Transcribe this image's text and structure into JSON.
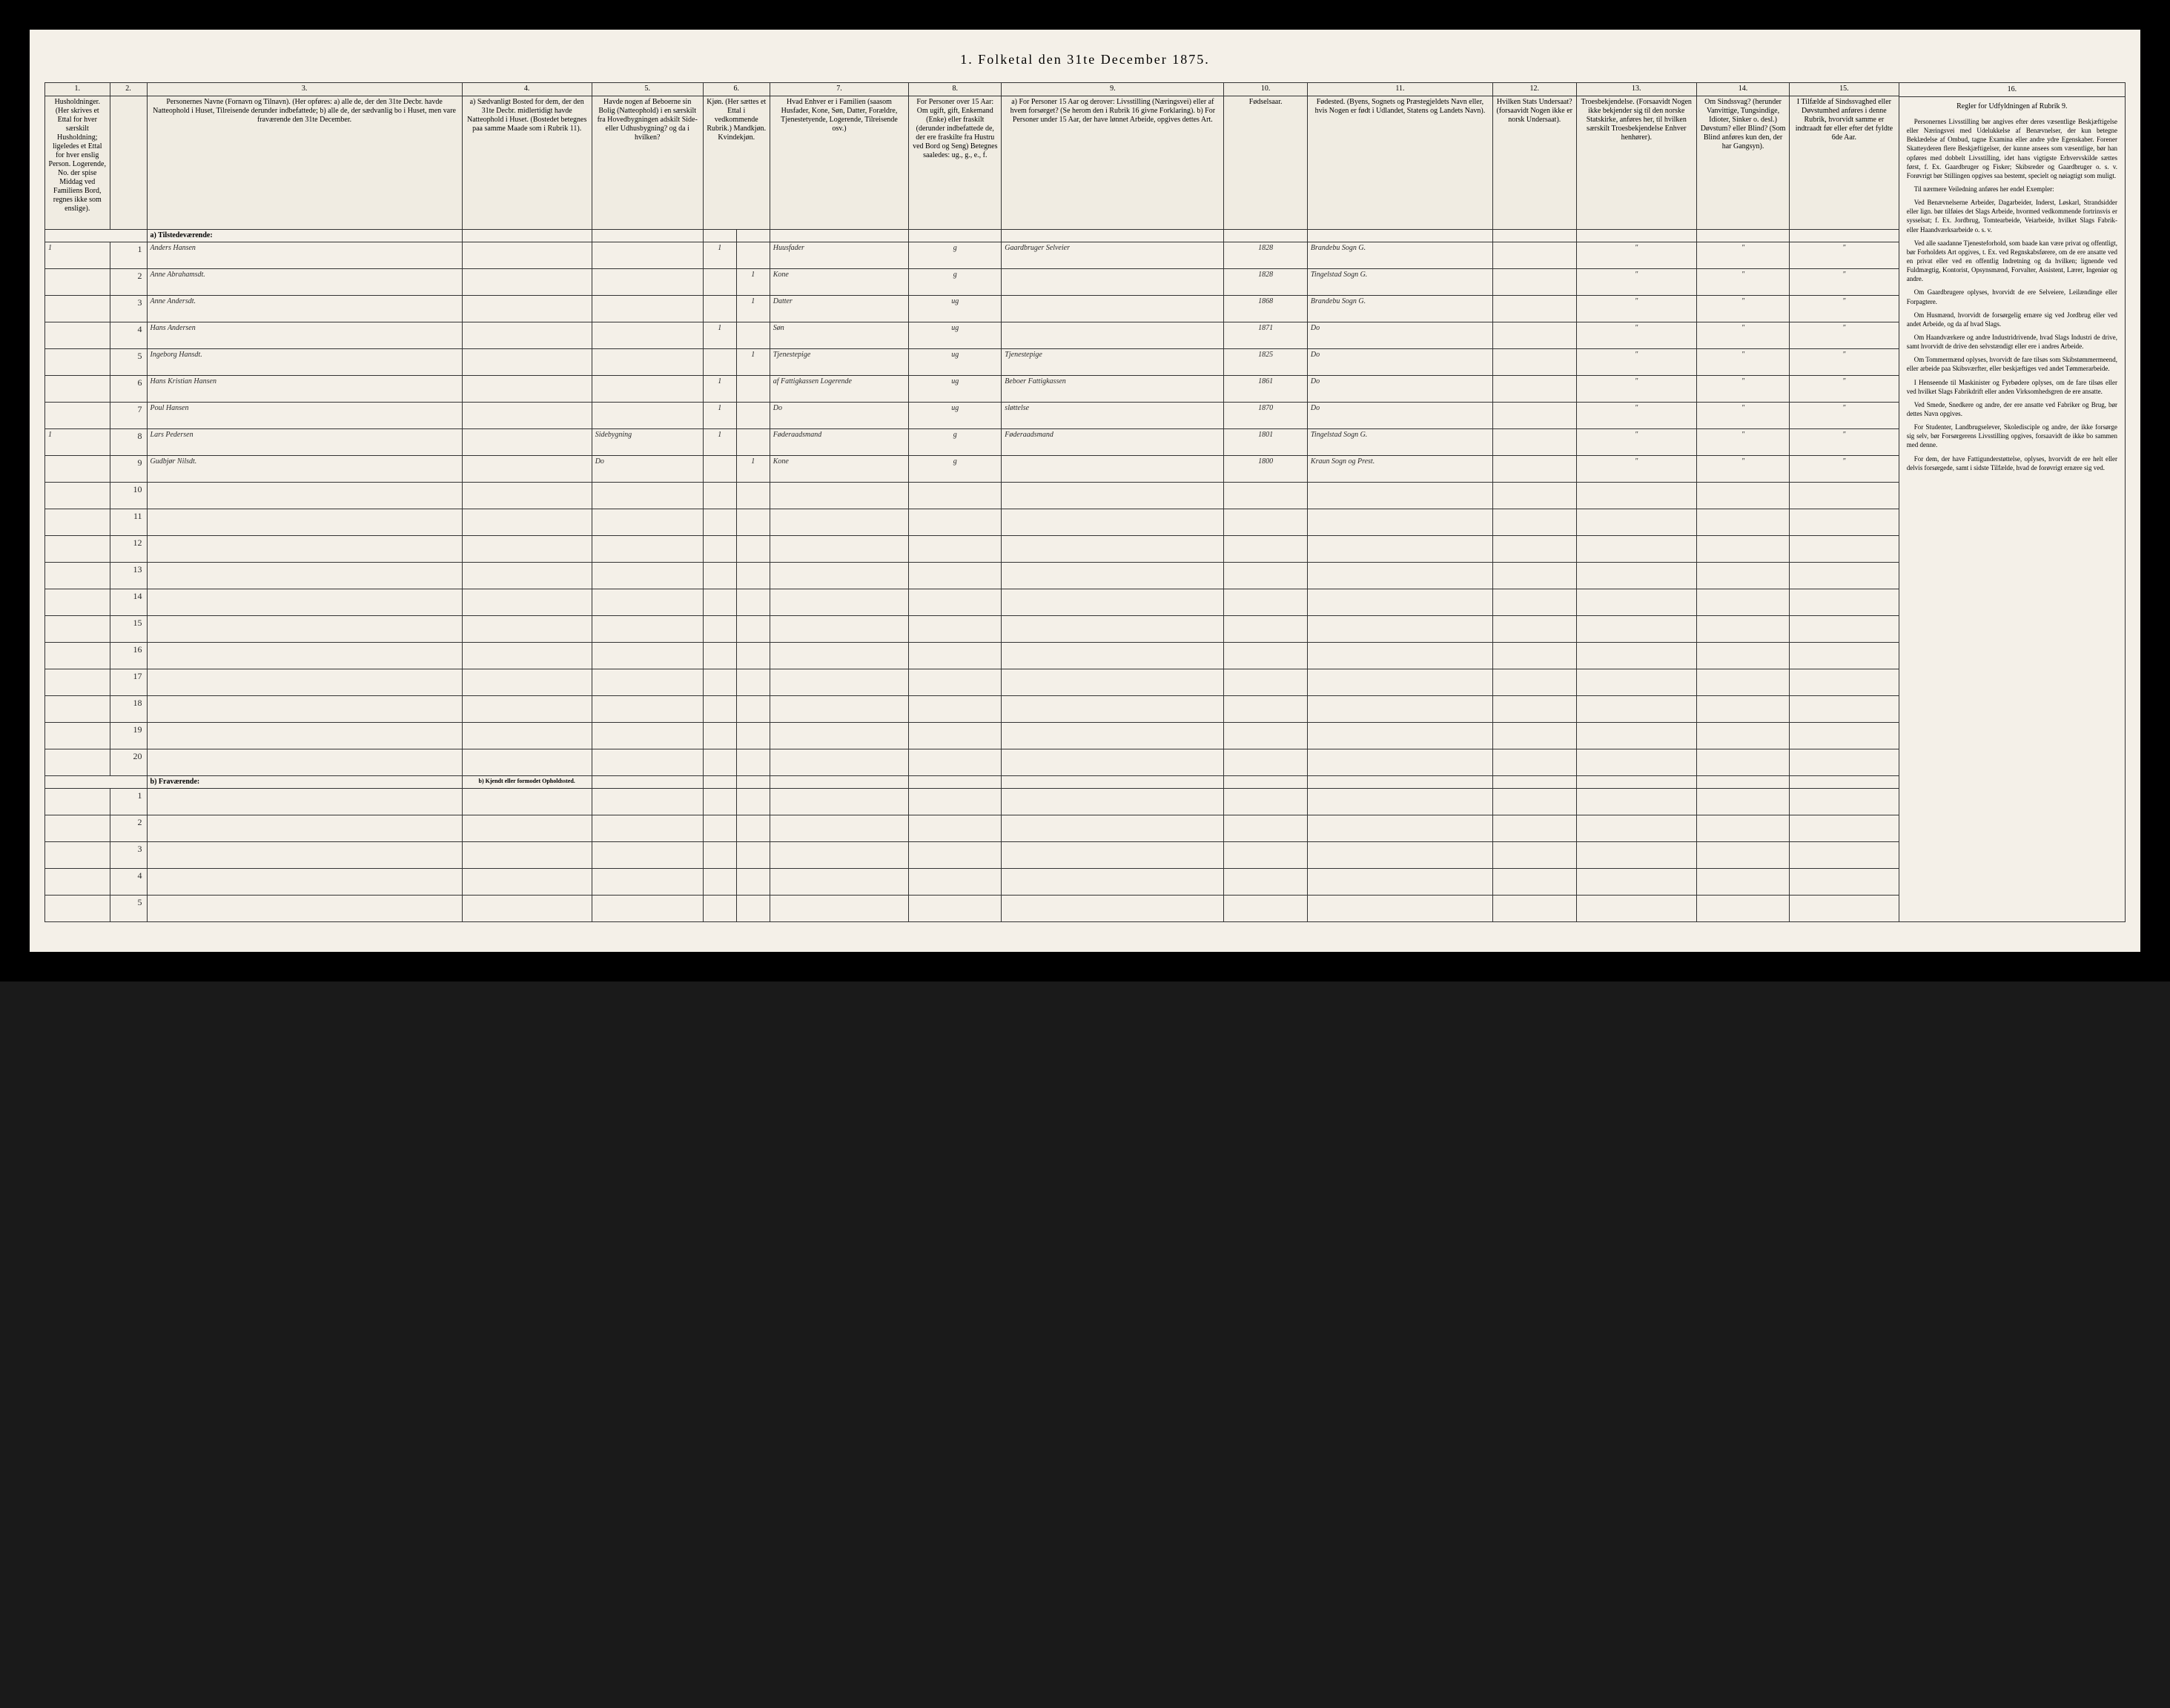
{
  "title": "1.  Folketal den 31te December 1875.",
  "columns": {
    "nums": [
      "1.",
      "2.",
      "3.",
      "4.",
      "5.",
      "6.",
      "7.",
      "8.",
      "9.",
      "10.",
      "11.",
      "12.",
      "13.",
      "14.",
      "15."
    ],
    "headers": [
      "Husholdninger. (Her skrives et Ettal for hver særskilt Husholdning; ligeledes et Ettal for hver enslig Person. Logerende, No. der spise Middag ved Familiens Bord, regnes ikke som enslige).",
      "",
      "Personernes Navne (Fornavn og Tilnavn). (Her opføres: a) alle de, der den 31te Decbr. havde Natteophold i Huset, Tilreisende derunder indbefattede; b) alle de, der sædvanlig bo i Huset, men vare fraværende den 31te December.",
      "a) Sædvanligt Bosted for dem, der den 31te Decbr. midlertidigt havde Natteophold i Huset. (Bostedet betegnes paa samme Maade som i Rubrik 11).",
      "Havde nogen af Beboerne sin Bolig (Natteophold) i en særskilt fra Hovedbygningen adskilt Side- eller Udhusbygning? og da i hvilken?",
      "Kjøn. (Her sættes et Ettal i vedkommende Rubrik.) Mandkjøn. Kvindekjøn.",
      "Hvad Enhver er i Familien (saasom Husfader, Kone, Søn, Datter, Forældre, Tjenestetyende, Logerende, Tilreisende osv.)",
      "For Personer over 15 Aar: Om ugift, gift, Enkemand (Enke) eller fraskilt (derunder indbefattede de, der ere fraskilte fra Hustru ved Bord og Seng) Betegnes saaledes: ug., g., e., f.",
      "a) For Personer 15 Aar og derover: Livsstilling (Næringsvei) eller af hvem forsørget? (Se herom den i Rubrik 16 givne Forklaring). b) For Personer under 15 Aar, der have lønnet Arbeide, opgives dettes Art.",
      "Fødselsaar.",
      "Fødested. (Byens, Sognets og Præstegjeldets Navn eller, hvis Nogen er født i Udlandet, Statens og Landets Navn).",
      "Hvilken Stats Undersaat? (forsaavidt Nogen ikke er norsk Undersaat).",
      "Troesbekjendelse. (Forsaavidt Nogen ikke bekjender sig til den norske Statskirke, anføres her, til hvilken særskilt Troesbekjendelse Enhver henhører).",
      "Om Sindssvag? (herunder Vanvittige, Tungsindige, Idioter, Sinker o. desl.) Døvstum? eller Blind? (Som Blind anføres kun den, der har Gangsyn).",
      "I Tilfælde af Sindssvaghed eller Døvstumhed anføres i denne Rubrik, hvorvidt samme er indtraadt før eller efter det fyldte 6de Aar."
    ]
  },
  "sections": {
    "present": "a) Tilstedeværende:",
    "absent": "b) Fraværende:",
    "absent_col4": "b) Kjendt eller formodet Opholdssted."
  },
  "rows": [
    {
      "hh": "1",
      "n": "1",
      "name": "Anders Hansen",
      "c4": "",
      "c5": "",
      "c6a": "1",
      "c6b": "",
      "role": "Huusfader",
      "ms": "g",
      "occ": "Gaardbruger Selveier",
      "year": "1828",
      "place": "Brandebu Sogn G.",
      "c12": "",
      "c13": "\"",
      "c14": "\"",
      "c15": "\""
    },
    {
      "hh": "",
      "n": "2",
      "name": "Anne Abrahamsdt.",
      "c4": "",
      "c5": "",
      "c6a": "",
      "c6b": "1",
      "role": "Kone",
      "ms": "g",
      "occ": "",
      "year": "1828",
      "place": "Tingelstad Sogn G.",
      "c12": "",
      "c13": "\"",
      "c14": "\"",
      "c15": "\""
    },
    {
      "hh": "",
      "n": "3",
      "name": "Anne Andersdt.",
      "c4": "",
      "c5": "",
      "c6a": "",
      "c6b": "1",
      "role": "Datter",
      "ms": "ug",
      "occ": "",
      "year": "1868",
      "place": "Brandebu Sogn G.",
      "c12": "",
      "c13": "\"",
      "c14": "\"",
      "c15": "\""
    },
    {
      "hh": "",
      "n": "4",
      "name": "Hans Andersen",
      "c4": "",
      "c5": "",
      "c6a": "1",
      "c6b": "",
      "role": "Søn",
      "ms": "ug",
      "occ": "",
      "year": "1871",
      "place": "Do",
      "c12": "",
      "c13": "\"",
      "c14": "\"",
      "c15": "\""
    },
    {
      "hh": "",
      "n": "5",
      "name": "Ingeborg Hansdt.",
      "c4": "",
      "c5": "",
      "c6a": "",
      "c6b": "1",
      "role": "Tjenestepige",
      "ms": "ug",
      "occ": "Tjenestepige",
      "year": "1825",
      "place": "Do",
      "c12": "",
      "c13": "\"",
      "c14": "\"",
      "c15": "\""
    },
    {
      "hh": "",
      "n": "6",
      "name": "Hans Kristian Hansen",
      "c4": "",
      "c5": "",
      "c6a": "1",
      "c6b": "",
      "role": "af Fattigkassen Logerende",
      "ms": "ug",
      "occ": "Beboer Fattigkassen",
      "year": "1861",
      "place": "Do",
      "c12": "",
      "c13": "\"",
      "c14": "\"",
      "c15": "\""
    },
    {
      "hh": "",
      "n": "7",
      "name": "Poul Hansen",
      "c4": "",
      "c5": "",
      "c6a": "1",
      "c6b": "",
      "role": "Do",
      "ms": "ug",
      "occ": "sløttelse",
      "year": "1870",
      "place": "Do",
      "c12": "",
      "c13": "\"",
      "c14": "\"",
      "c15": "\""
    },
    {
      "hh": "1",
      "n": "8",
      "name": "Lars Pedersen",
      "c4": "",
      "c5": "Sidebygning",
      "c6a": "1",
      "c6b": "",
      "role": "Føderaadsmand",
      "ms": "g",
      "occ": "Føderaadsmand",
      "year": "1801",
      "place": "Tingelstad Sogn G.",
      "c12": "",
      "c13": "\"",
      "c14": "\"",
      "c15": "\""
    },
    {
      "hh": "",
      "n": "9",
      "name": "Gudbjør Nilsdt.",
      "c4": "",
      "c5": "Do",
      "c6a": "",
      "c6b": "1",
      "role": "Kone",
      "ms": "g",
      "occ": "",
      "year": "1800",
      "place": "Kraun Sogn og Prest.",
      "c12": "",
      "c13": "\"",
      "c14": "\"",
      "c15": "\""
    }
  ],
  "blank_present_rows": [
    "10",
    "11",
    "12",
    "13",
    "14",
    "15",
    "16",
    "17",
    "18",
    "19",
    "20"
  ],
  "blank_absent_rows": [
    "1",
    "2",
    "3",
    "4",
    "5"
  ],
  "sidebar": {
    "col": "16.",
    "title": "Regler for Udfyldningen af Rubrik 9.",
    "paragraphs": [
      "Personernes Livsstilling bør angives efter deres væsentlige Beskjæftigelse eller Næringsvei med Udelukkelse af Benævnelser, der kun betegne Beklædelse af Ombud, tagne Examina eller andre ydre Egenskaber. Forener Skatteyderen flere Beskjæftigelser, der kunne ansees som væsentlige, bør han opføres med dobbelt Livsstilling, idet hans vigtigste Erhvervskilde sættes først, f. Ex. Gaardbruger og Fisker; Skibsreder og Gaardbruger o. s. v. Forøvrigt bør Stillingen opgives saa bestemt, specielt og nøiagtigt som muligt.",
      "Til nærmere Veiledning anføres her endel Exempler:",
      "Ved Benævnelserne Arbeider, Dagarbeider, Inderst, Løskarl, Strandsidder eller lign. bør tilføies det Slags Arbeide, hvormed vedkommende fortrinsvis er sysselsat; f. Ex. Jordbrug, Tomtearbeide, Veiarbeide, hvilket Slags Fabrik- eller Haandværksarbeide o. s. v.",
      "Ved alle saadanne Tjenesteforhold, som baade kan være privat og offentligt, bør Forholdets Art opgives, t. Ex. ved Regnskabsførere, om de ere ansatte ved en privat eller ved en offentlig Indretning og da hvilken; lignende ved Fuldmægtig, Kontorist, Opsynsmænd, Forvalter, Assistent, Lærer, Ingeniør og andre.",
      "Om Gaardbrugere oplyses, hvorvidt de ere Selveiere, Leilændinge eller Forpagtere.",
      "Om Husmænd, hvorvidt de forsørgelig ernære sig ved Jordbrug eller ved andet Arbeide, og da af hvad Slags.",
      "Om Haandværkere og andre Industridrivende, hvad Slags Industri de drive, samt hvorvidt de drive den selvstændigt eller ere i andres Arbeide.",
      "Om Tommermænd oplyses, hvorvidt de fare tilsøs som Skibstømmermeend, eller arbeide paa Skibsværfter, eller beskjæftiges ved andet Tømmerarbeide.",
      "I Henseende til Maskinister og Fyrbødere oplyses, om de fare tilsøs eller ved hvilket Slags Fabrikdrift eller anden Virksomhedsgren de ere ansatte.",
      "Ved Smede, Snedkere og andre, der ere ansatte ved Fabriker og Brug, bør dettes Navn opgives.",
      "For Studenter, Landbrugselever, Skoledisciple og andre, der ikke forsørge sig selv, bør Forsørgerens Livsstilling opgives, forsaavidt de ikke bo sammen med denne.",
      "For dem, der have Fattigunderstøttelse, oplyses, hvorvidt de ere helt eller delvis forsørgede, samt i sidste Tilfælde, hvad de forøvrigt ernære sig ved."
    ]
  },
  "style": {
    "page_bg": "#f4f0e8",
    "frame_bg": "#000000",
    "border_color": "#333333",
    "col_widths_pct": [
      3.5,
      2.0,
      17.0,
      7.0,
      6.0,
      1.8,
      1.8,
      7.5,
      5.0,
      12.0,
      4.5,
      10.0,
      4.5,
      6.5,
      5.0,
      5.9
    ]
  }
}
